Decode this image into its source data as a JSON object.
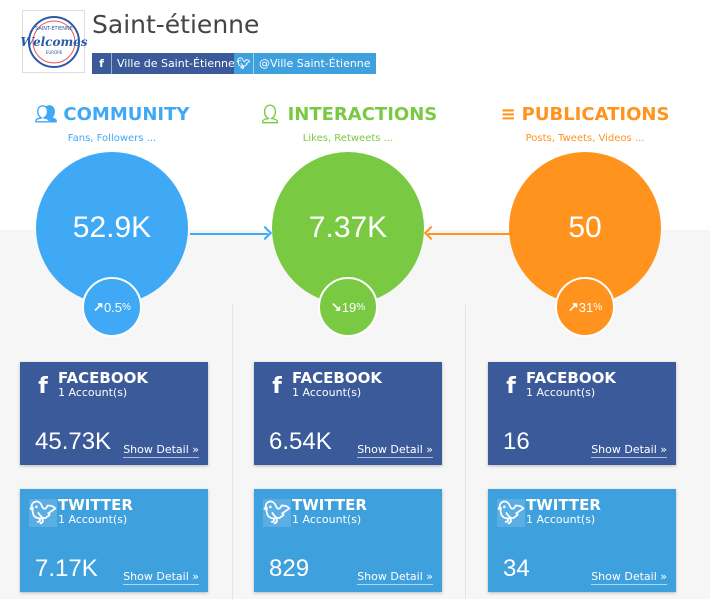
{
  "header": {
    "title": "Saint-étienne",
    "logo_text": "Saint-Étienne Welcomes Europe 2016",
    "facebook": {
      "icon": "facebook-icon",
      "label": "Ville de Saint-Étienne"
    },
    "twitter": {
      "icon": "twitter-icon",
      "label": "@Ville Saint-Étienne"
    }
  },
  "colors": {
    "community": "#3fa9f5",
    "interactions": "#7ac943",
    "publications": "#ff931e",
    "facebook": "#3b5a9a",
    "twitter": "#3fa0de"
  },
  "columns": [
    {
      "key": "community",
      "icon": "users-icon",
      "title": "COMMUNITY",
      "subtitle": "Fans, Followers ...",
      "value": "52.9K",
      "trend": "up",
      "trend_icon": "arrow-up-right-icon",
      "change": "0.5",
      "pct": "%",
      "facebook": {
        "name": "FACEBOOK",
        "accounts": "1 Account(s)",
        "value": "45.73K",
        "link": "Show Detail »"
      },
      "twitter": {
        "name": "TWITTER",
        "accounts": "1 Account(s)",
        "value": "7.17K",
        "link": "Show Detail »"
      }
    },
    {
      "key": "interactions",
      "icon": "interactions-icon",
      "title": "INTERACTIONS",
      "subtitle": "Likes, Retweets ...",
      "value": "7.37K",
      "trend": "down",
      "trend_icon": "arrow-down-right-icon",
      "change": "19",
      "pct": "%",
      "facebook": {
        "name": "FACEBOOK",
        "accounts": "1 Account(s)",
        "value": "6.54K",
        "link": "Show Detail »"
      },
      "twitter": {
        "name": "TWITTER",
        "accounts": "1 Account(s)",
        "value": "829",
        "link": "Show Detail »"
      }
    },
    {
      "key": "publications",
      "icon": "stack-icon",
      "title": "PUBLICATIONS",
      "subtitle": "Posts, Tweets, Videos ...",
      "value": "50",
      "trend": "up",
      "trend_icon": "arrow-up-right-icon",
      "change": "31",
      "pct": "%",
      "facebook": {
        "name": "FACEBOOK",
        "accounts": "1 Account(s)",
        "value": "16",
        "link": "Show Detail »"
      },
      "twitter": {
        "name": "TWITTER",
        "accounts": "1 Account(s)",
        "value": "34",
        "link": "Show Detail »"
      }
    }
  ]
}
